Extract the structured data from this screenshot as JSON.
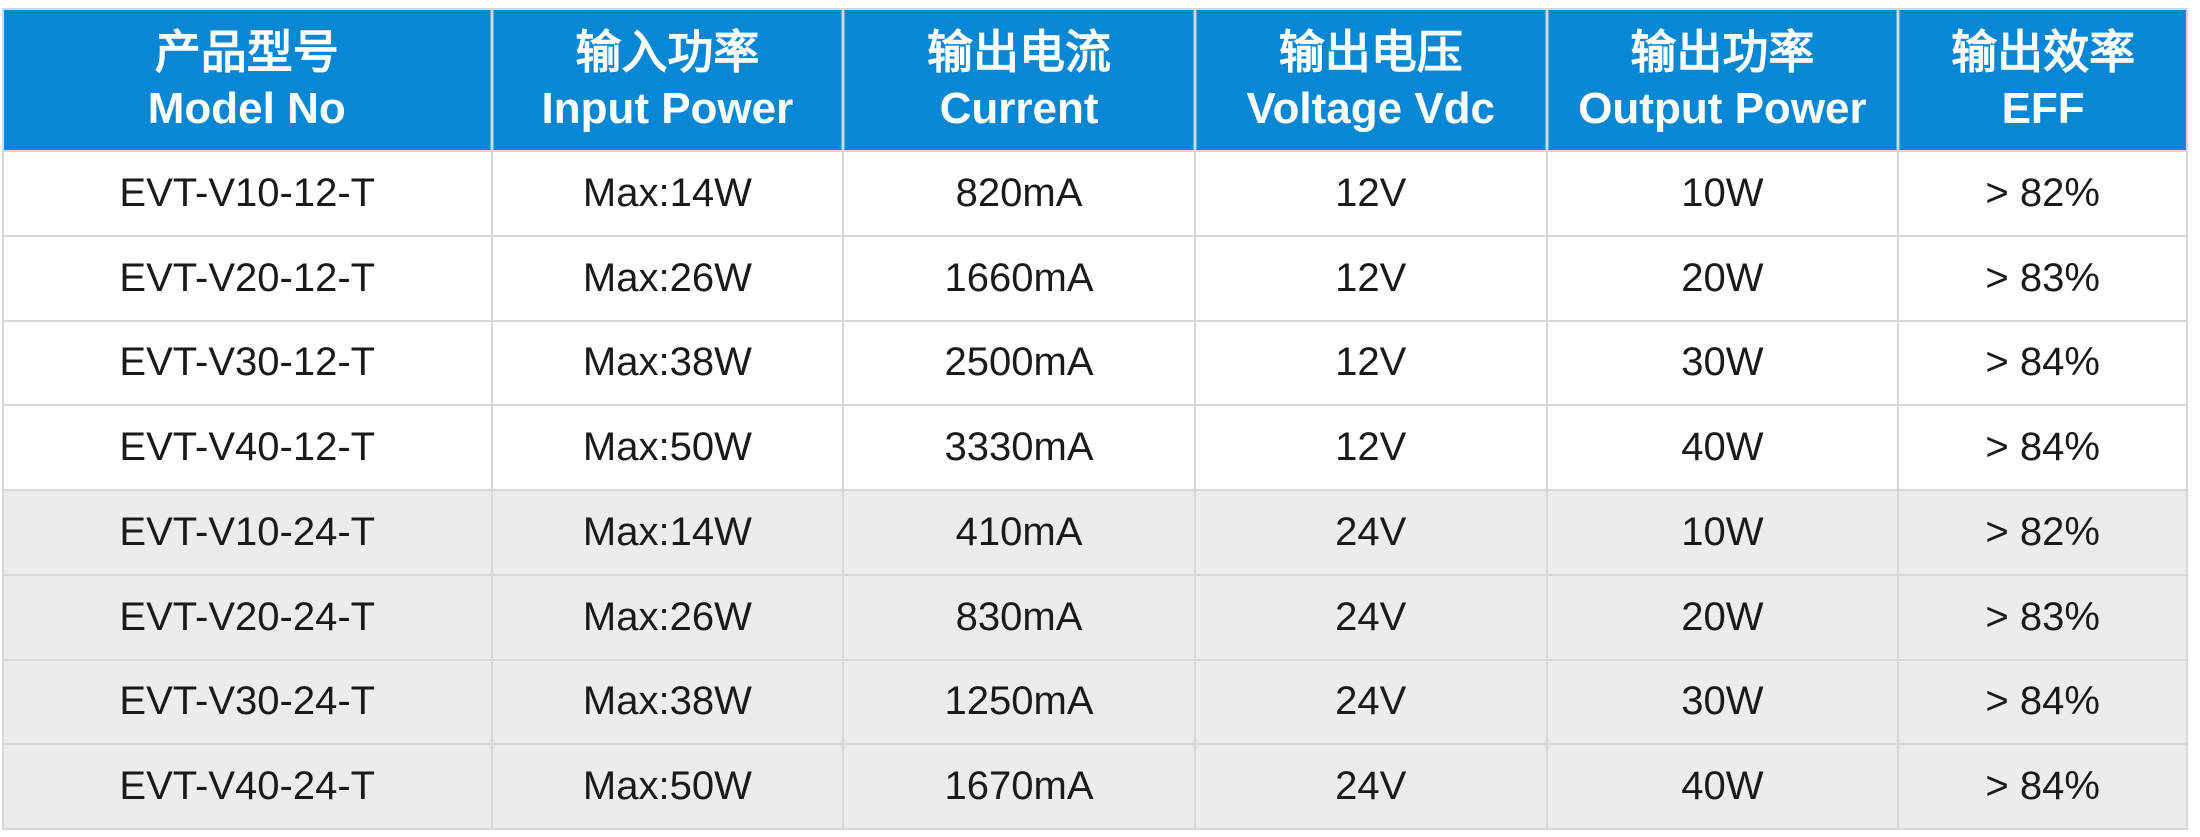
{
  "chart_data": {
    "type": "table",
    "title": "",
    "columns": [
      {
        "zh": "产品型号",
        "en": "Model No"
      },
      {
        "zh": "输入功率",
        "en": "Input Power"
      },
      {
        "zh": "输出电流",
        "en": "Current"
      },
      {
        "zh": "输出电压",
        "en": "Voltage Vdc"
      },
      {
        "zh": "输出功率",
        "en": "Output Power"
      },
      {
        "zh": "输出效率",
        "en": "EFF"
      }
    ],
    "rows": [
      [
        "EVT-V10-12-T",
        "Max:14W",
        "820mA",
        "12V",
        "10W",
        "> 82%"
      ],
      [
        "EVT-V20-12-T",
        "Max:26W",
        "1660mA",
        "12V",
        "20W",
        "> 83%"
      ],
      [
        "EVT-V30-12-T",
        "Max:38W",
        "2500mA",
        "12V",
        "30W",
        "> 84%"
      ],
      [
        "EVT-V40-12-T",
        "Max:50W",
        "3330mA",
        "12V",
        "40W",
        "> 84%"
      ],
      [
        "EVT-V10-24-T",
        "Max:14W",
        "410mA",
        "24V",
        "10W",
        "> 82%"
      ],
      [
        "EVT-V20-24-T",
        "Max:26W",
        "830mA",
        "24V",
        "20W",
        "> 83%"
      ],
      [
        "EVT-V30-24-T",
        "Max:38W",
        "1250mA",
        "24V",
        "30W",
        "> 84%"
      ],
      [
        "EVT-V40-24-T",
        "Max:50W",
        "1670mA",
        "24V",
        "40W",
        "> 84%"
      ]
    ]
  },
  "colors": {
    "header_bg": "#0887d4",
    "header_text": "#ffffff",
    "row_white": "#ffffff",
    "row_gray": "#edecea",
    "divider": "#d9d8d6",
    "body_text": "#1a1a1a"
  }
}
